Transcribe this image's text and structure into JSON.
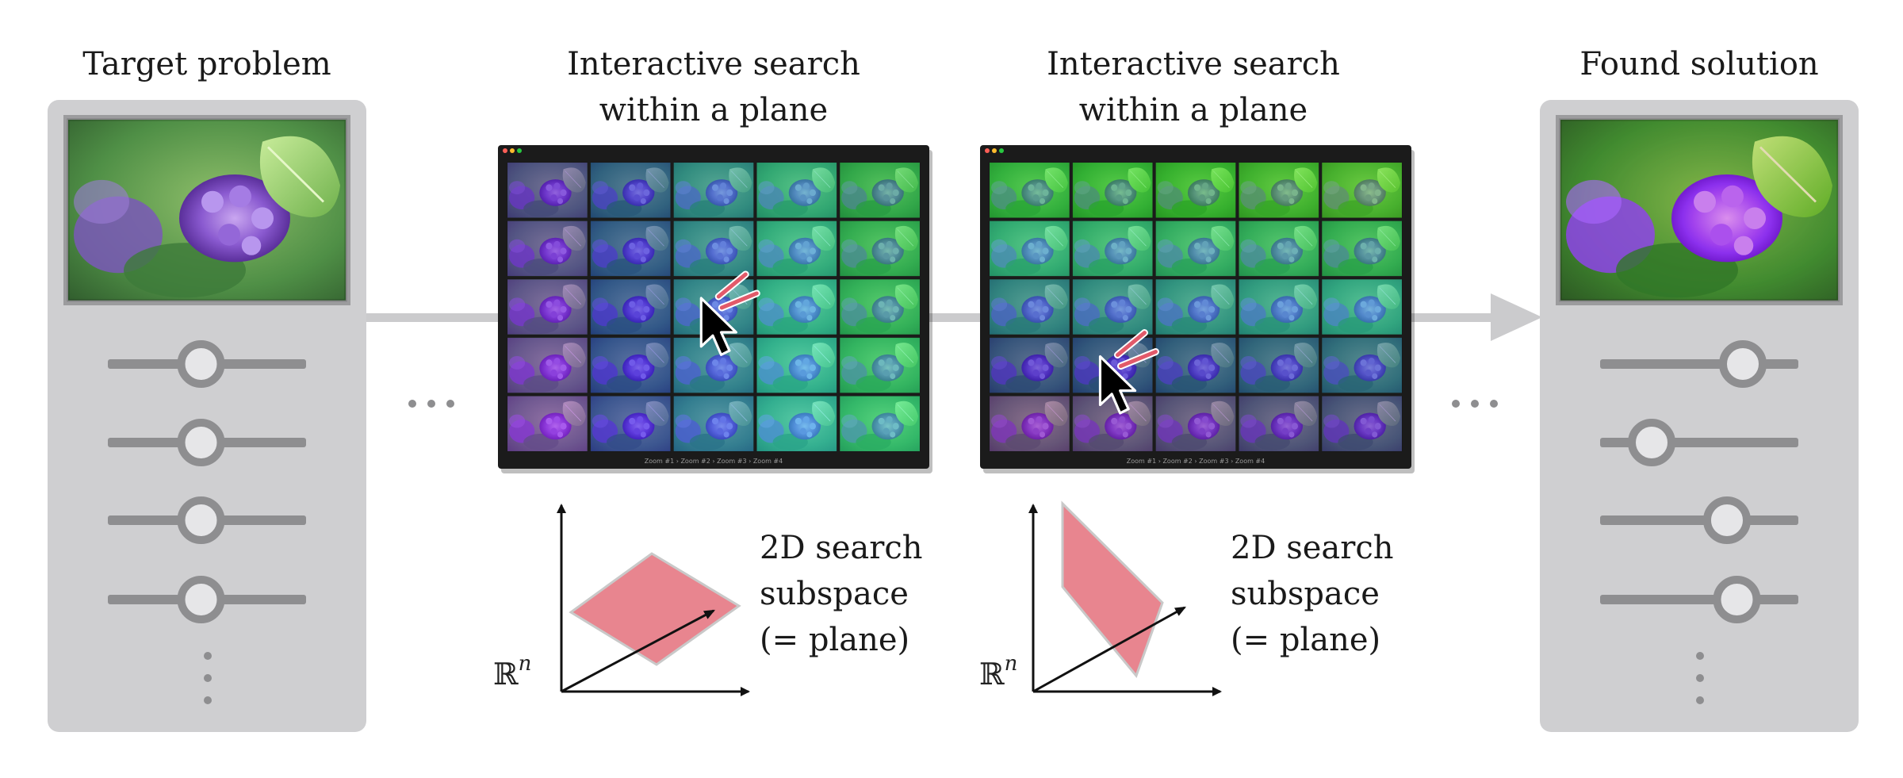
{
  "steps": [
    {
      "title": "Target problem"
    },
    {
      "title_line1": "Interactive search",
      "title_line2": "within a plane"
    },
    {
      "title_line1": "Interactive search",
      "title_line2": "within a plane"
    },
    {
      "title": "Found solution"
    }
  ],
  "subspace": {
    "line1": "2D search",
    "line2": "subspace",
    "line3": "(= plane)",
    "space_symbol": "ℝ",
    "space_exponent": "n"
  },
  "window_footer": "Zoom #1 › Zoom #2 › Zoom #3 › Zoom #4",
  "grid": {
    "rows": 5,
    "cols": 5
  },
  "sliders": {
    "left_levels": [
      0.47,
      0.47,
      0.47,
      0.47
    ],
    "right_levels": [
      0.72,
      0.26,
      0.64,
      0.69
    ]
  },
  "colors": {
    "panel": "#cfcfd1",
    "slider_track": "#8e8e90",
    "flow_arrow": "#cbcbcd",
    "plane_fill": "#e8858f",
    "plane_stroke": "#c9c9c9",
    "window_bg": "#1b1b1b",
    "click_mark": "#e25a6a"
  },
  "icons": [
    "cursor-icon",
    "ellipsis-icon",
    "window-dot-icon"
  ]
}
